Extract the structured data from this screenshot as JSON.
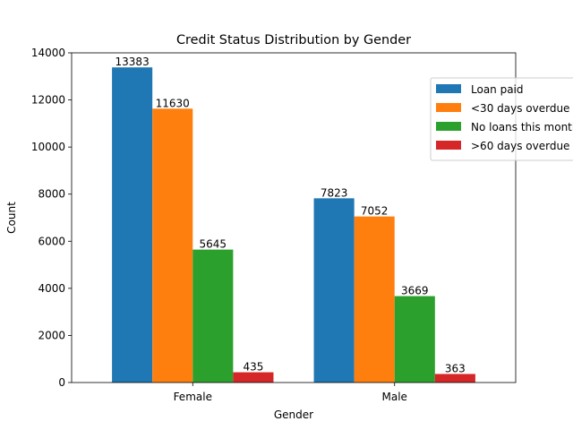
{
  "chart_data": {
    "type": "bar",
    "title": "Credit Status Distribution by Gender",
    "xlabel": "Gender",
    "ylabel": "Count",
    "ylim": [
      0,
      14000
    ],
    "yticks": [
      0,
      2000,
      4000,
      6000,
      8000,
      10000,
      12000,
      14000
    ],
    "categories": [
      "Female",
      "Male"
    ],
    "series": [
      {
        "name": "Loan paid",
        "color": "#1f77b4",
        "values": [
          13383,
          7823
        ]
      },
      {
        "name": "<30 days overdue",
        "color": "#ff7f0e",
        "values": [
          11630,
          7052
        ]
      },
      {
        "name": "No loans this month",
        "color": "#2ca02c",
        "values": [
          5645,
          3669
        ]
      },
      {
        "name": ">60 days overdue",
        "color": "#d62728",
        "values": [
          435,
          363
        ]
      }
    ],
    "legend_position": "right, partially outside",
    "grid": false
  }
}
